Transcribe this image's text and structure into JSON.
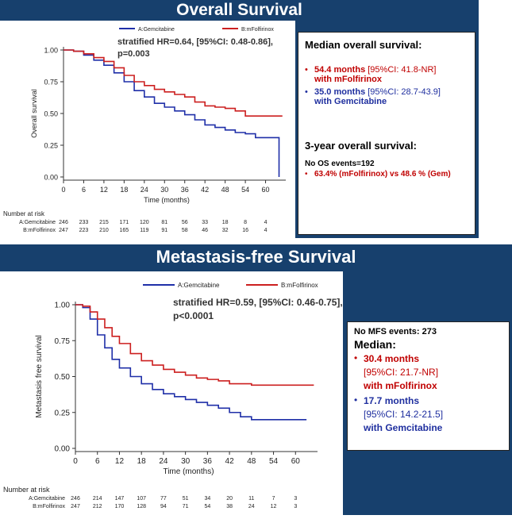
{
  "colors": {
    "band": "#17406d",
    "gem": "#1f2fa8",
    "folf": "#cc1f1f"
  },
  "os": {
    "title": "Overall Survival",
    "legend": [
      "A:Gemcitabine",
      "B:mFolfirinox"
    ],
    "hr_line1": "stratified HR=0.64, [95%CI: 0.48-0.86],",
    "hr_line2": "p=0.003",
    "info": {
      "heading": "Median overall survival:",
      "b1_val": "54.4 months",
      "b1_ci": " [95%CI: 41.8-NR]",
      "b1_with": "with mFolfirinox",
      "b2_val": "35.0 months",
      "b2_ci": " [95%CI: 28.7-43.9]",
      "b2_with": "with Gemcitabine",
      "heading2": "3-year overall survival:",
      "events": "No OS events=192",
      "three_year": "63.4% (mFolfirinox) vs 48.6 % (Gem)"
    }
  },
  "mfs": {
    "title": "Metastasis-free Survival",
    "legend": [
      "A:Gemcitabine",
      "B:mFolfirinox"
    ],
    "hr_line1": "stratified HR=0.59, [95%CI: 0.46-0.75],",
    "hr_line2": "p<0.0001",
    "info": {
      "events_label": "No MFS events: ",
      "events_val": "273",
      "heading": "Median:",
      "b1_val": "30.4 months",
      "b1_ci": "[95%CI: 21.7-NR]",
      "b1_with": "with mFolfirinox",
      "b2_val": "17.7 months",
      "b2_ci": "[95%CI: 14.2-21.5]",
      "b2_with": "with Gemcitabine"
    }
  },
  "chart_data": [
    {
      "type": "line",
      "title": "",
      "xlabel": "Time (months)",
      "ylabel": "Overall survival",
      "xlim": [
        0,
        66
      ],
      "ylim": [
        0,
        1
      ],
      "xticks": [
        0,
        6,
        12,
        18,
        24,
        30,
        36,
        42,
        48,
        54,
        60
      ],
      "yticks": [
        "0.00",
        "0.25",
        "0.50",
        "0.75",
        "1.00"
      ],
      "legend": "top",
      "series": [
        {
          "name": "A:Gemcitabine",
          "color": "#1f2fa8",
          "x": [
            0,
            3,
            6,
            9,
            12,
            15,
            18,
            21,
            24,
            27,
            30,
            33,
            36,
            39,
            42,
            45,
            48,
            51,
            54,
            57,
            60,
            63,
            64,
            64
          ],
          "y": [
            1.0,
            0.99,
            0.96,
            0.92,
            0.88,
            0.82,
            0.75,
            0.68,
            0.63,
            0.58,
            0.55,
            0.52,
            0.49,
            0.45,
            0.41,
            0.39,
            0.37,
            0.35,
            0.34,
            0.31,
            0.31,
            0.31,
            0.3,
            0.0
          ]
        },
        {
          "name": "B:mFolfirinox",
          "color": "#cc1f1f",
          "x": [
            0,
            3,
            6,
            9,
            12,
            15,
            18,
            21,
            24,
            27,
            30,
            33,
            36,
            39,
            42,
            45,
            48,
            51,
            54,
            57,
            60,
            63,
            65
          ],
          "y": [
            1.0,
            0.99,
            0.97,
            0.94,
            0.91,
            0.86,
            0.8,
            0.75,
            0.72,
            0.69,
            0.67,
            0.65,
            0.63,
            0.59,
            0.56,
            0.55,
            0.54,
            0.52,
            0.48,
            0.48,
            0.48,
            0.48,
            0.48
          ]
        }
      ],
      "risk_table": {
        "label": "Number at risk",
        "rows": [
          {
            "name": "A:Gemcitabine",
            "values": [
              "246",
              "233",
              "215",
              "171",
              "120",
              "81",
              "56",
              "33",
              "18",
              "8",
              "4"
            ]
          },
          {
            "name": "B:mFolfirinox",
            "values": [
              "247",
              "223",
              "210",
              "165",
              "119",
              "91",
              "58",
              "46",
              "32",
              "16",
              "4"
            ]
          }
        ]
      }
    },
    {
      "type": "line",
      "title": "",
      "xlabel": "Time (months)",
      "ylabel": "Metastasis free survival",
      "xlim": [
        0,
        66
      ],
      "ylim": [
        0,
        1
      ],
      "xticks": [
        0,
        6,
        12,
        18,
        24,
        30,
        36,
        42,
        48,
        54,
        60
      ],
      "yticks": [
        "0.00",
        "0.25",
        "0.50",
        "0.75",
        "1.00"
      ],
      "legend": "top",
      "series": [
        {
          "name": "A:Gemcitabine",
          "color": "#1f2fa8",
          "x": [
            0,
            2,
            4,
            6,
            8,
            10,
            12,
            15,
            18,
            21,
            24,
            27,
            30,
            33,
            36,
            39,
            42,
            45,
            48,
            51,
            54,
            57,
            60,
            63
          ],
          "y": [
            1.0,
            0.98,
            0.9,
            0.79,
            0.7,
            0.62,
            0.56,
            0.5,
            0.45,
            0.41,
            0.38,
            0.36,
            0.34,
            0.32,
            0.3,
            0.28,
            0.25,
            0.22,
            0.2,
            0.2,
            0.2,
            0.2,
            0.2,
            0.2
          ]
        },
        {
          "name": "B:mFolfirinox",
          "color": "#cc1f1f",
          "x": [
            0,
            2,
            4,
            6,
            8,
            10,
            12,
            15,
            18,
            21,
            24,
            27,
            30,
            33,
            36,
            39,
            42,
            45,
            48,
            51,
            54,
            57,
            60,
            63,
            65
          ],
          "y": [
            1.0,
            0.99,
            0.95,
            0.9,
            0.84,
            0.78,
            0.73,
            0.66,
            0.61,
            0.58,
            0.55,
            0.53,
            0.51,
            0.49,
            0.48,
            0.47,
            0.45,
            0.45,
            0.44,
            0.44,
            0.44,
            0.44,
            0.44,
            0.44,
            0.44
          ]
        }
      ],
      "risk_table": {
        "label": "Number at risk",
        "rows": [
          {
            "name": "A:Gemcitabine",
            "values": [
              "246",
              "214",
              "147",
              "107",
              "77",
              "51",
              "34",
              "20",
              "11",
              "7",
              "3"
            ]
          },
          {
            "name": "B:mFolfirinox",
            "values": [
              "247",
              "212",
              "170",
              "128",
              "94",
              "71",
              "54",
              "38",
              "24",
              "12",
              "3"
            ]
          }
        ]
      }
    }
  ]
}
